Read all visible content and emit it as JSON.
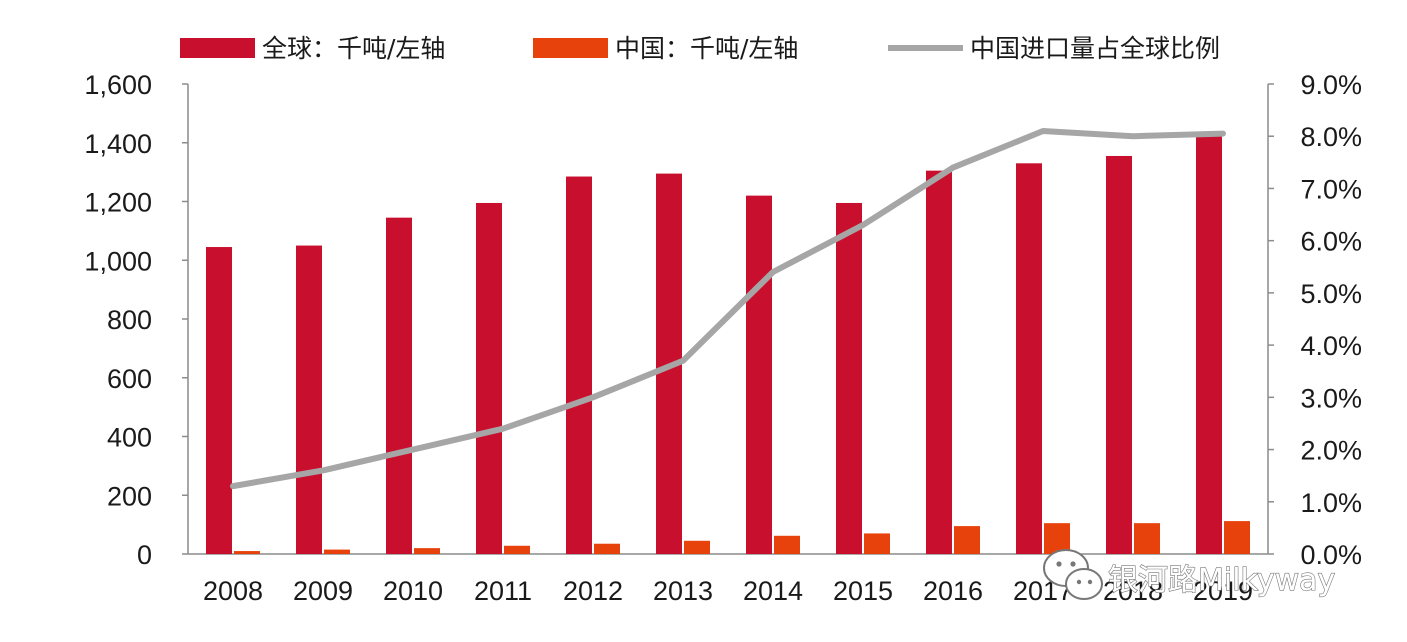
{
  "chart_data": {
    "type": "bar",
    "categories": [
      "2008",
      "2009",
      "2010",
      "2011",
      "2012",
      "2013",
      "2014",
      "2015",
      "2016",
      "2017",
      "2018",
      "2019"
    ],
    "series": [
      {
        "name": "全球：千吨/左轴",
        "kind": "bar",
        "axis": "left",
        "color": "#c8102e",
        "values": [
          1045,
          1050,
          1145,
          1195,
          1285,
          1295,
          1220,
          1195,
          1305,
          1330,
          1355,
          1425
        ]
      },
      {
        "name": "中国：千吨/左轴",
        "kind": "bar",
        "axis": "left",
        "color": "#e8420c",
        "values": [
          10,
          15,
          20,
          28,
          35,
          45,
          62,
          70,
          95,
          105,
          105,
          112
        ]
      },
      {
        "name": "中国进口量占全球比例",
        "kind": "line",
        "axis": "right",
        "color": "#a6a6a6",
        "values": [
          1.3,
          1.6,
          2.0,
          2.4,
          3.0,
          3.7,
          5.4,
          6.3,
          7.4,
          8.1,
          8.0,
          8.05
        ]
      }
    ],
    "y_left": {
      "lim": [
        0,
        1600
      ],
      "ticks": [
        "0",
        "200",
        "400",
        "600",
        "800",
        "1,000",
        "1,200",
        "1,400",
        "1,600"
      ]
    },
    "y_right": {
      "lim": [
        0,
        9
      ],
      "ticks": [
        "0.0%",
        "1.0%",
        "2.0%",
        "3.0%",
        "4.0%",
        "5.0%",
        "6.0%",
        "7.0%",
        "8.0%",
        "9.0%"
      ]
    },
    "legend_position": "top",
    "grid": false
  },
  "watermark": {
    "text": "银河路Milkyway",
    "icon": "wechat-icon"
  }
}
